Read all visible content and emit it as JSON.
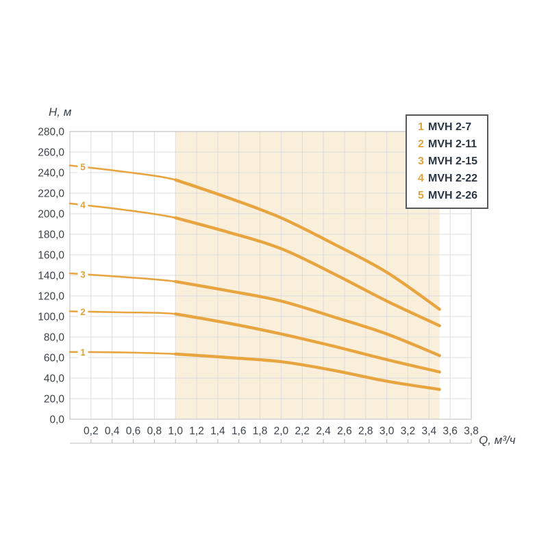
{
  "chart_data": {
    "type": "line",
    "title": "",
    "xlabel": "Q, м³/ч",
    "ylabel": "H, м",
    "xlim": [
      0,
      3.8
    ],
    "ylim": [
      0,
      280
    ],
    "grid": true,
    "legend_position": "top-right",
    "x_ticks": {
      "values": [
        0.2,
        0.4,
        0.6,
        0.8,
        1.0,
        1.2,
        1.4,
        1.6,
        1.8,
        2.0,
        2.2,
        2.4,
        2.6,
        2.8,
        3.0,
        3.2,
        3.4,
        3.6,
        3.8
      ],
      "labels": [
        "0,2",
        "0,4",
        "0,6",
        "0,8",
        "1,0",
        "1,2",
        "1,4",
        "1,6",
        "1,8",
        "2,0",
        "2,2",
        "2,4",
        "2,6",
        "2,8",
        "3,0",
        "3,2",
        "3,4",
        "3,6",
        "3,8"
      ]
    },
    "y_ticks": {
      "values": [
        0,
        20,
        40,
        60,
        80,
        100,
        120,
        140,
        160,
        180,
        200,
        220,
        240,
        260,
        280
      ],
      "labels": [
        "0,0",
        "20,0",
        "40,0",
        "60,0",
        "80,0",
        "100,0",
        "120,0",
        "140,0",
        "160,0",
        "180,0",
        "200,0",
        "220,0",
        "240,0",
        "260,0",
        "280,0"
      ]
    },
    "working_range": {
      "from": 1.0,
      "to": 3.5
    },
    "x": [
      0,
      0.5,
      1.0,
      1.5,
      2.0,
      2.5,
      3.0,
      3.5
    ],
    "series": [
      {
        "index": "1",
        "name": "MVH 2-7",
        "values": [
          65.5,
          65.0,
          63.5,
          60.0,
          56.0,
          47.5,
          37.0,
          29.0
        ]
      },
      {
        "index": "2",
        "name": "MVH 2-11",
        "values": [
          105.0,
          104.0,
          102.5,
          93.5,
          83.0,
          71.0,
          58.0,
          46.0
        ]
      },
      {
        "index": "3",
        "name": "MVH 2-15",
        "values": [
          142.0,
          138.5,
          134.0,
          125.0,
          115.0,
          99.5,
          83.0,
          62.0
        ]
      },
      {
        "index": "4",
        "name": "MVH 2-22",
        "values": [
          210.0,
          204.0,
          196.0,
          182.0,
          166.0,
          141.5,
          115.0,
          91.0
        ]
      },
      {
        "index": "5",
        "name": "MVH 2-26",
        "values": [
          247.0,
          241.0,
          233.0,
          215.5,
          196.0,
          170.5,
          143.0,
          107.0
        ]
      }
    ],
    "colors": {
      "curve": "#E8A43F",
      "accent_text": "#DFA33F",
      "working_fill": "#FAEFDB",
      "grid": "#DCDCDC",
      "grid_border": "#C6C6C6",
      "ruler": "#C9C9C9",
      "tick_mark": "#BDBDBD",
      "axis_text": "#3C4249",
      "legend_text": "#2B3645",
      "legend_border": "#55585C",
      "background": "#FFFFFF"
    }
  }
}
